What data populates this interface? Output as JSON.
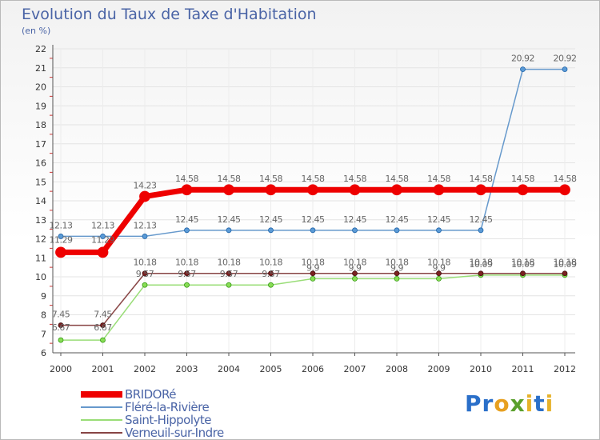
{
  "title": "Evolution du Taux de Taxe d'Habitation",
  "subtitle": "(en %)",
  "brand": "Proxiti",
  "chart_data": {
    "type": "line",
    "title": "Evolution du Taux de Taxe d'Habitation",
    "ylabel": "(en %)",
    "xlabel": "",
    "ylim": [
      6,
      22
    ],
    "yticks": [
      "6",
      "7",
      "8",
      "9",
      "10",
      "11",
      "12",
      "13",
      "14",
      "15",
      "16",
      "17",
      "18",
      "19",
      "20",
      "21",
      "22"
    ],
    "categories": [
      "2000",
      "2001",
      "2002",
      "2003",
      "2004",
      "2005",
      "2006",
      "2007",
      "2008",
      "2009",
      "2010",
      "2011",
      "2012"
    ],
    "series": [
      {
        "name": "BRIDORé",
        "color": "#ee0000",
        "values": [
          11.29,
          11.29,
          14.23,
          14.58,
          14.58,
          14.58,
          14.58,
          14.58,
          14.58,
          14.58,
          14.58,
          14.58,
          14.58
        ],
        "labels": [
          "11.29",
          "11.29",
          "14.23",
          "14.58",
          "14.58",
          "14.58",
          "14.58",
          "14.58",
          "14.58",
          "14.58",
          "14.58",
          "14.58",
          "14.58"
        ]
      },
      {
        "name": "Fléré-la-Rivière",
        "color": "#6699cc",
        "values": [
          12.13,
          12.13,
          12.13,
          12.45,
          12.45,
          12.45,
          12.45,
          12.45,
          12.45,
          12.45,
          12.45,
          20.92,
          20.92
        ],
        "labels": [
          "12.13",
          "12.13",
          "12.13",
          "12.45",
          "12.45",
          "12.45",
          "12.45",
          "12.45",
          "12.45",
          "12.45",
          "12.45",
          "20.92",
          "20.92"
        ]
      },
      {
        "name": "Saint-Hippolyte",
        "color": "#99dd77",
        "values": [
          6.67,
          6.67,
          9.57,
          9.57,
          9.57,
          9.57,
          9.9,
          9.9,
          9.9,
          9.9,
          10.09,
          10.09,
          10.09
        ],
        "labels": [
          "6.67",
          "6.67",
          "9.57",
          "9.57",
          "9.57",
          "9.57",
          "9.9",
          "9.9",
          "9.9",
          "9.9",
          "10.09",
          "10.09",
          "10.09"
        ]
      },
      {
        "name": "Verneuil-sur-Indre",
        "color": "#884444",
        "values": [
          7.45,
          7.45,
          10.18,
          10.18,
          10.18,
          10.18,
          10.18,
          10.18,
          10.18,
          10.18,
          10.18,
          10.18,
          10.18
        ],
        "labels": [
          "7.45",
          "7.45",
          "10.18",
          "10.18",
          "10.18",
          "10.18",
          "10.18",
          "10.18",
          "10.18",
          "10.18",
          "10.18",
          "10.18",
          "10.18"
        ]
      }
    ]
  }
}
